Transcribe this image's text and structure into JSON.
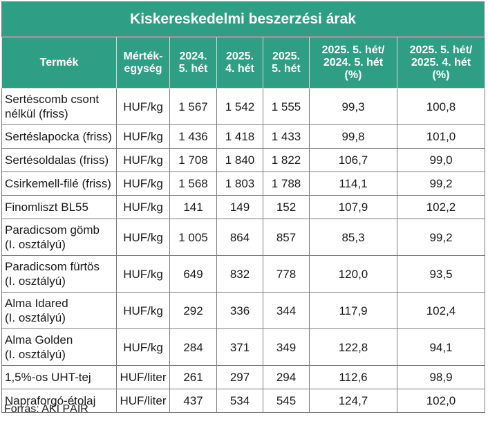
{
  "title": "Kiskereskedelmi beszerzési árak",
  "columns": [
    "Termék",
    "Mérték-\negység",
    "2024.\n5. hét",
    "2025.\n4. hét",
    "2025.\n5. hét",
    "2025. 5. hét/\n2024. 5. hét\n(%)",
    "2025. 5.  hét/\n2025. 4. hét\n(%)"
  ],
  "rows": [
    [
      "Sertéscomb csont\nnélkül (friss)",
      "HUF/kg",
      "1 567",
      "1 542",
      "1 555",
      "99,3",
      "100,8"
    ],
    [
      "Sertéslapocka (friss)",
      "HUF/kg",
      "1 436",
      "1 418",
      "1 433",
      "99,8",
      "101,0"
    ],
    [
      "Sertésoldalas (friss)",
      "HUF/kg",
      "1 708",
      "1 840",
      "1 822",
      "106,7",
      "99,0"
    ],
    [
      "Csirkemell-filé (friss)",
      "HUF/kg",
      "1 568",
      "1 803",
      "1 788",
      "114,1",
      "99,2"
    ],
    [
      "Finomliszt BL55",
      "HUF/kg",
      "141",
      "149",
      "152",
      "107,9",
      "102,2"
    ],
    [
      "Paradicsom gömb\n(I. osztályú)",
      "HUF/kg",
      "1 005",
      "864",
      "857",
      "85,3",
      "99,2"
    ],
    [
      "Paradicsom fürtös\n(I. osztályú)",
      "HUF/kg",
      "649",
      "832",
      "778",
      "120,0",
      "93,5"
    ],
    [
      "Alma Idared\n(I. osztályú)",
      "HUF/kg",
      "292",
      "336",
      "344",
      "117,9",
      "102,4"
    ],
    [
      "Alma Golden\n(I. osztályú)",
      "HUF/kg",
      "284",
      "371",
      "349",
      "122,8",
      "94,1"
    ],
    [
      "1,5%-os UHT-tej",
      "HUF/liter",
      "261",
      "297",
      "294",
      "112,6",
      "98,9"
    ],
    [
      "Napraforgó-étolaj",
      "HUF/liter",
      "437",
      "534",
      "545",
      "124,7",
      "102,0"
    ]
  ],
  "source": "Forrás: AKI PÁIR",
  "colors": {
    "header_bg": "#2e9e84",
    "header_text": "#ffffff",
    "border": "#7a7a7a"
  }
}
